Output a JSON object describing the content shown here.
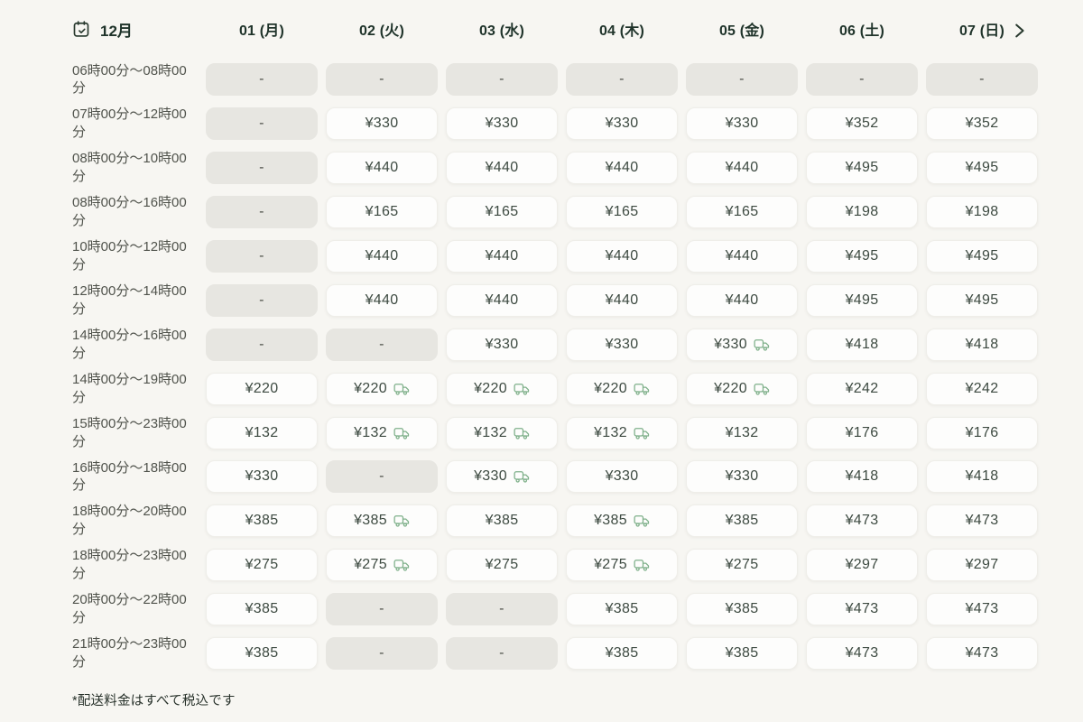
{
  "header": {
    "month_label": "12月",
    "days": [
      "01 (月)",
      "02 (火)",
      "03 (水)",
      "04 (木)",
      "05 (金)",
      "06 (土)",
      "07 (日)"
    ]
  },
  "rows": [
    {
      "time": "06時00分～08時00分",
      "cells": [
        {
          "label": "-",
          "disabled": true
        },
        {
          "label": "-",
          "disabled": true
        },
        {
          "label": "-",
          "disabled": true
        },
        {
          "label": "-",
          "disabled": true
        },
        {
          "label": "-",
          "disabled": true
        },
        {
          "label": "-",
          "disabled": true
        },
        {
          "label": "-",
          "disabled": true
        }
      ]
    },
    {
      "time": "07時00分～12時00分",
      "cells": [
        {
          "label": "-",
          "disabled": true
        },
        {
          "label": "¥330"
        },
        {
          "label": "¥330"
        },
        {
          "label": "¥330"
        },
        {
          "label": "¥330"
        },
        {
          "label": "¥352"
        },
        {
          "label": "¥352"
        }
      ]
    },
    {
      "time": "08時00分～10時00分",
      "cells": [
        {
          "label": "-",
          "disabled": true
        },
        {
          "label": "¥440"
        },
        {
          "label": "¥440"
        },
        {
          "label": "¥440"
        },
        {
          "label": "¥440"
        },
        {
          "label": "¥495"
        },
        {
          "label": "¥495"
        }
      ]
    },
    {
      "time": "08時00分～16時00分",
      "cells": [
        {
          "label": "-",
          "disabled": true
        },
        {
          "label": "¥165"
        },
        {
          "label": "¥165"
        },
        {
          "label": "¥165"
        },
        {
          "label": "¥165"
        },
        {
          "label": "¥198"
        },
        {
          "label": "¥198"
        }
      ]
    },
    {
      "time": "10時00分～12時00分",
      "cells": [
        {
          "label": "-",
          "disabled": true
        },
        {
          "label": "¥440"
        },
        {
          "label": "¥440"
        },
        {
          "label": "¥440"
        },
        {
          "label": "¥440"
        },
        {
          "label": "¥495"
        },
        {
          "label": "¥495"
        }
      ]
    },
    {
      "time": "12時00分～14時00分",
      "cells": [
        {
          "label": "-",
          "disabled": true
        },
        {
          "label": "¥440"
        },
        {
          "label": "¥440"
        },
        {
          "label": "¥440"
        },
        {
          "label": "¥440"
        },
        {
          "label": "¥495"
        },
        {
          "label": "¥495"
        }
      ]
    },
    {
      "time": "14時00分～16時00分",
      "cells": [
        {
          "label": "-",
          "disabled": true
        },
        {
          "label": "-",
          "disabled": true
        },
        {
          "label": "¥330"
        },
        {
          "label": "¥330"
        },
        {
          "label": "¥330",
          "truck": true
        },
        {
          "label": "¥418"
        },
        {
          "label": "¥418"
        }
      ]
    },
    {
      "time": "14時00分～19時00分",
      "cells": [
        {
          "label": "¥220"
        },
        {
          "label": "¥220",
          "truck": true
        },
        {
          "label": "¥220",
          "truck": true
        },
        {
          "label": "¥220",
          "truck": true
        },
        {
          "label": "¥220",
          "truck": true
        },
        {
          "label": "¥242"
        },
        {
          "label": "¥242"
        }
      ]
    },
    {
      "time": "15時00分～23時00分",
      "cells": [
        {
          "label": "¥132"
        },
        {
          "label": "¥132",
          "truck": true
        },
        {
          "label": "¥132",
          "truck": true
        },
        {
          "label": "¥132",
          "truck": true
        },
        {
          "label": "¥132"
        },
        {
          "label": "¥176"
        },
        {
          "label": "¥176"
        }
      ]
    },
    {
      "time": "16時00分～18時00分",
      "cells": [
        {
          "label": "¥330"
        },
        {
          "label": "-",
          "disabled": true
        },
        {
          "label": "¥330",
          "truck": true
        },
        {
          "label": "¥330"
        },
        {
          "label": "¥330"
        },
        {
          "label": "¥418"
        },
        {
          "label": "¥418"
        }
      ]
    },
    {
      "time": "18時00分～20時00分",
      "cells": [
        {
          "label": "¥385"
        },
        {
          "label": "¥385",
          "truck": true
        },
        {
          "label": "¥385"
        },
        {
          "label": "¥385",
          "truck": true
        },
        {
          "label": "¥385"
        },
        {
          "label": "¥473"
        },
        {
          "label": "¥473"
        }
      ]
    },
    {
      "time": "18時00分～23時00分",
      "cells": [
        {
          "label": "¥275"
        },
        {
          "label": "¥275",
          "truck": true
        },
        {
          "label": "¥275"
        },
        {
          "label": "¥275",
          "truck": true
        },
        {
          "label": "¥275"
        },
        {
          "label": "¥297"
        },
        {
          "label": "¥297"
        }
      ]
    },
    {
      "time": "20時00分～22時00分",
      "cells": [
        {
          "label": "¥385"
        },
        {
          "label": "-",
          "disabled": true
        },
        {
          "label": "-",
          "disabled": true
        },
        {
          "label": "¥385"
        },
        {
          "label": "¥385"
        },
        {
          "label": "¥473"
        },
        {
          "label": "¥473"
        }
      ]
    },
    {
      "time": "21時00分～23時00分",
      "cells": [
        {
          "label": "¥385"
        },
        {
          "label": "-",
          "disabled": true
        },
        {
          "label": "-",
          "disabled": true
        },
        {
          "label": "¥385"
        },
        {
          "label": "¥385"
        },
        {
          "label": "¥473"
        },
        {
          "label": "¥473"
        }
      ]
    }
  ],
  "footer": {
    "note": "*配送料金はすべて税込です"
  },
  "icons": {
    "month": "calendar-check-icon",
    "delivering": "truck-icon",
    "next": "chevron-right-icon"
  },
  "colors": {
    "background": "#f7f6f2",
    "cell_available_bg": "#fdfdfc",
    "cell_disabled_bg": "#e7e6e1",
    "header_text": "#1f332a",
    "price_text": "#3d4a41",
    "truck_green": "#7fb08a"
  }
}
